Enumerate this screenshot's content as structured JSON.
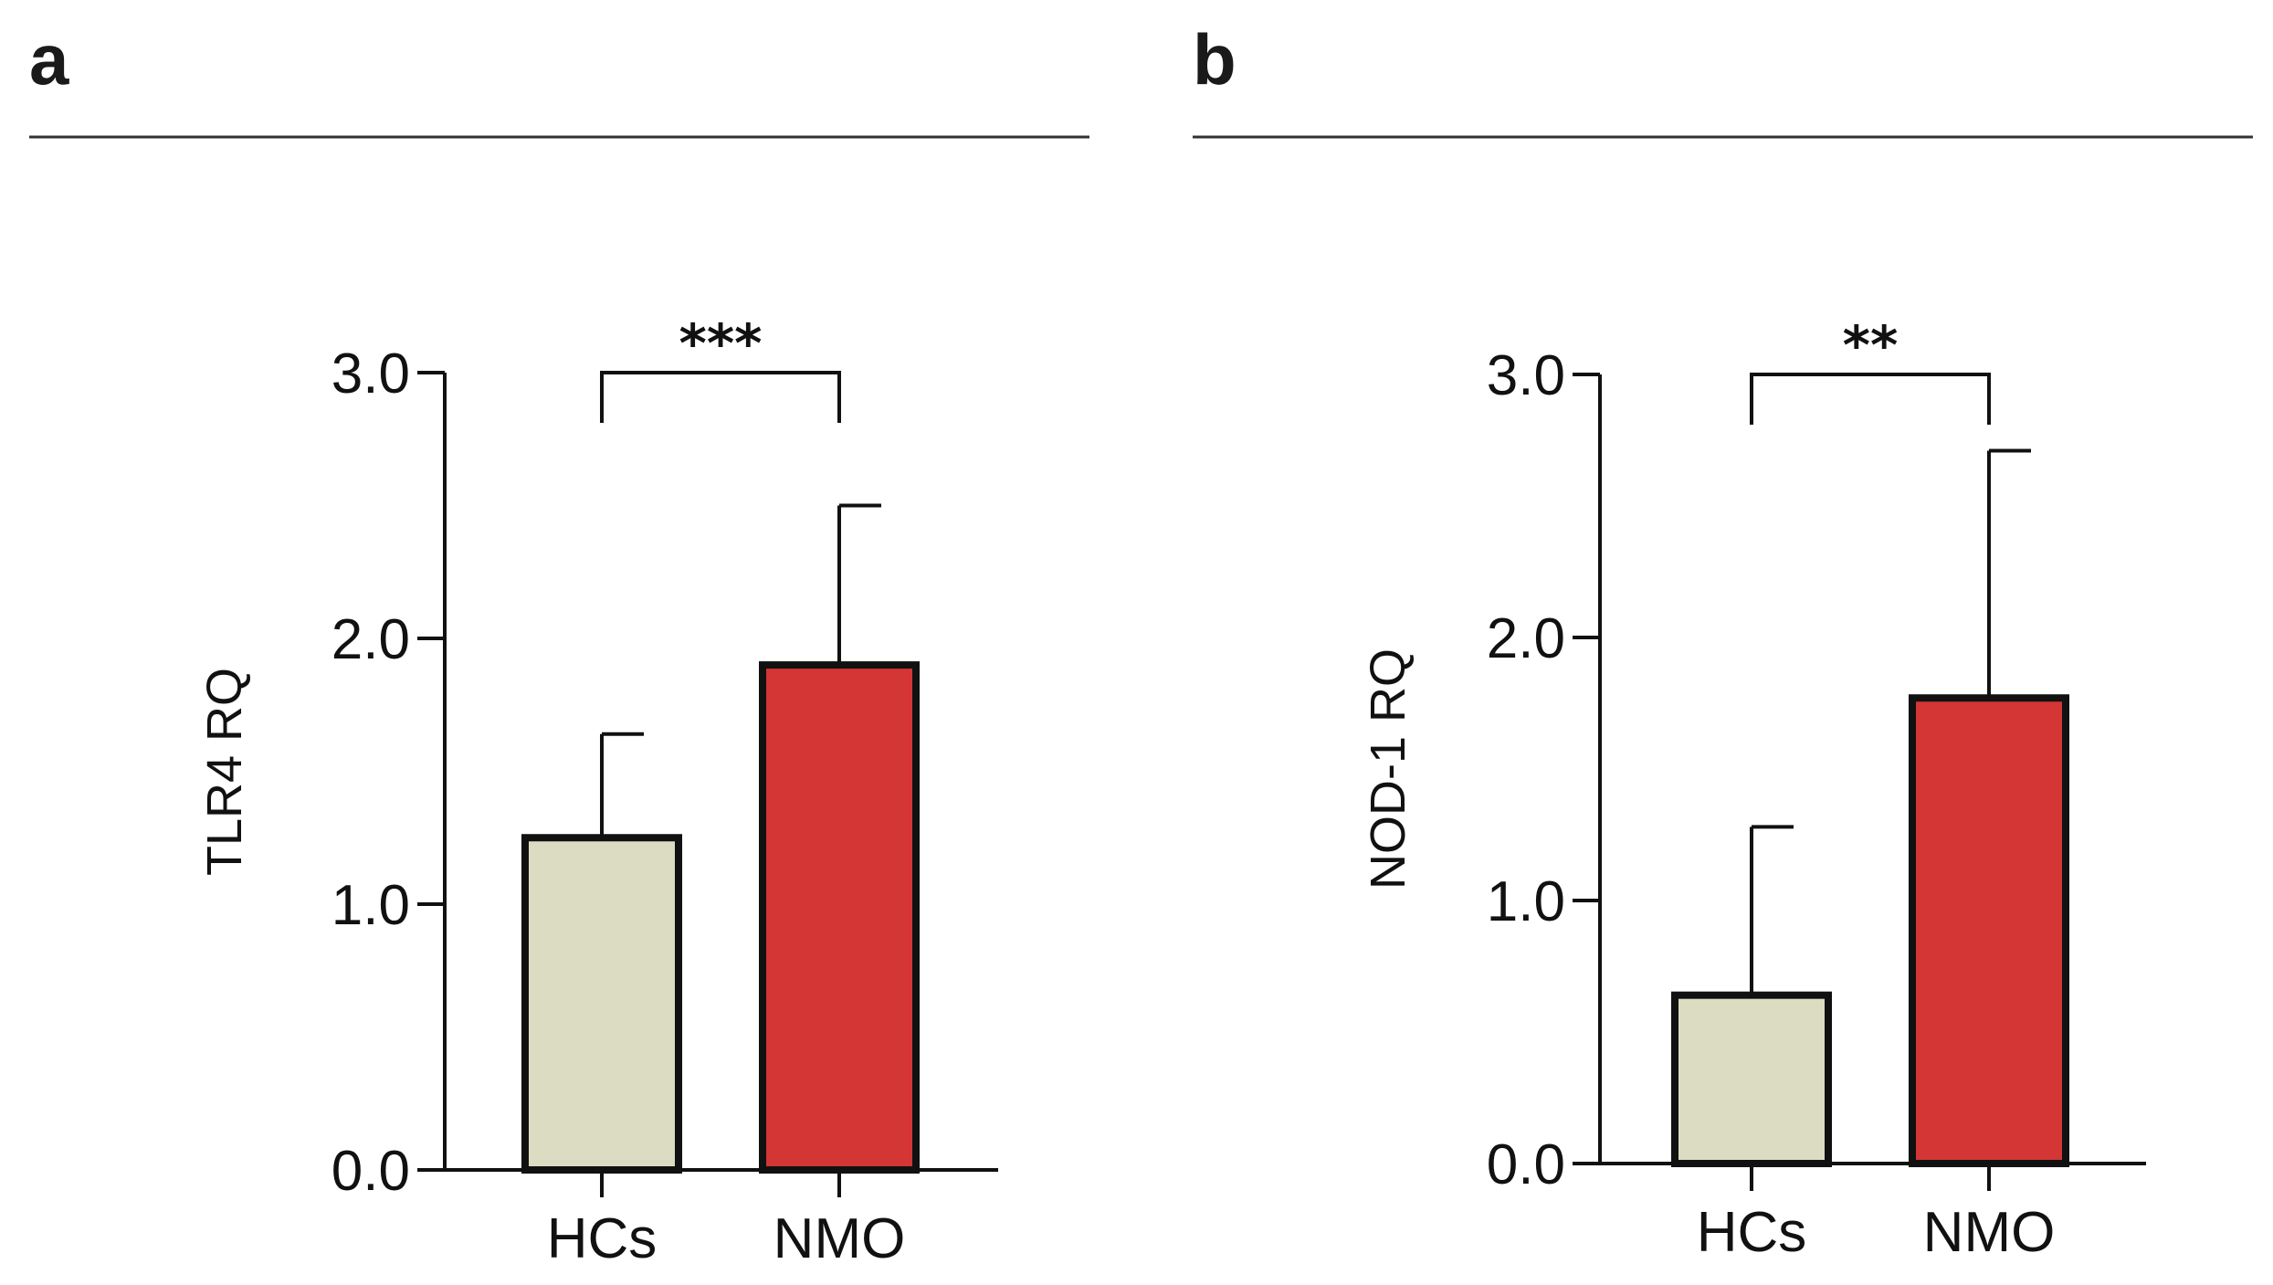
{
  "figure": {
    "panel_letters": [
      "a",
      "b"
    ],
    "colors": {
      "hcs_fill": "#dcdcc2",
      "nmo_fill": "#d43535",
      "stroke": "#111111",
      "rule": "#333333"
    }
  },
  "chart_data": [
    {
      "type": "bar",
      "panel": "a",
      "title": "",
      "xlabel": "",
      "ylabel": "TLR4 RQ",
      "categories": [
        "HCs",
        "NMO"
      ],
      "values": [
        1.25,
        1.9
      ],
      "errors_upper": [
        0.39,
        0.6
      ],
      "ylim": [
        0,
        3.0
      ],
      "yticks": [
        0.0,
        1.0,
        2.0,
        3.0
      ],
      "ytick_labels": [
        "0.0",
        "1.0",
        "2.0",
        "3.0"
      ],
      "significance": {
        "between": [
          "HCs",
          "NMO"
        ],
        "label": "***",
        "level": 3.0
      },
      "grid": false
    },
    {
      "type": "bar",
      "panel": "b",
      "title": "",
      "xlabel": "",
      "ylabel": "NOD-1 RQ",
      "categories": [
        "HCs",
        "NMO"
      ],
      "values": [
        0.64,
        1.77
      ],
      "errors_upper": [
        0.64,
        0.94
      ],
      "ylim": [
        0,
        3.0
      ],
      "yticks": [
        0.0,
        1.0,
        2.0,
        3.0
      ],
      "ytick_labels": [
        "0.0",
        "1.0",
        "2.0",
        "3.0"
      ],
      "significance": {
        "between": [
          "HCs",
          "NMO"
        ],
        "label": "**",
        "level": 3.0
      },
      "grid": false
    }
  ]
}
